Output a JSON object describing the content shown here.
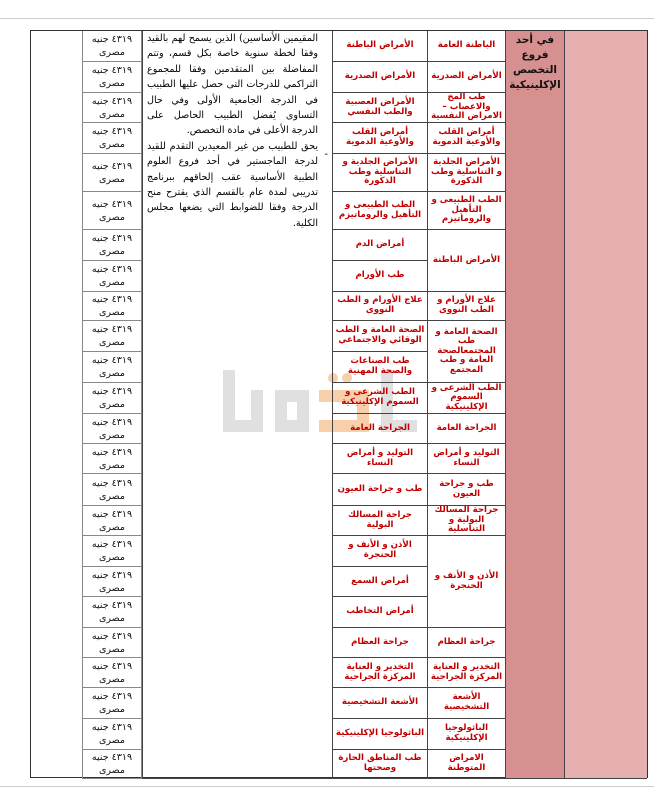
{
  "header_cell": "في أحد فروع التخصص الإكلينيكية",
  "description": {
    "paragraph_1": "المقيمين الأساسين) الذين يسمح لهم بالقيد وفقا لخطة سنوية خاصة بكل قسم، وتتم المفاضلة بين المتقدمين وفقا للمجموع التراكمي للدرجات التى حصل عليها الطبيب في الدرجة الجامعية الأولى وفي حال التساوى يُفضل الطبيب الحاصل على الدرجة الأعلى في مادة التخصص.",
    "bullet": "-",
    "paragraph_2": "يحق للطبيب من غير المعيدين التقدم للقيد لدرجة الماجستير في أحد فروع العلوم الطبية الأساسية عقب إلحاقهم ببرنامج تدريبي لمدة عام بالقسم الذي يقترح منح الدرجة وفقا للضوابط التي يضعها مجلس الكلية."
  },
  "fee": {
    "amount": "٤٣١٩ جنيه",
    "currency": "مصرى"
  },
  "departments": [
    {
      "label": "الباطنة العامة",
      "span": 1
    },
    {
      "label": "الأمراض الصدرية",
      "span": 1
    },
    {
      "label": "طب المخ والاعصاب –الامراض النفسية",
      "span": 1
    },
    {
      "label": "أمراض القلب والأوعية الدموية",
      "span": 1
    },
    {
      "label": "الأمراض الجلدية و التناسلية وطب الذكورة",
      "span": 1
    },
    {
      "label": "الطب الطبيعى و التأهيل والروماتيزم",
      "span": 1
    },
    {
      "label": "الأمراض الباطنة",
      "span": 2
    },
    {
      "label": "علاج الأورام و الطب النووى",
      "span": 1
    },
    {
      "label": "الصحة العامة و طب المجتمعالصحة العامة و طب المجتمع",
      "span": 2
    },
    {
      "label": "الطب الشرعى و السموم الإكلينيكية",
      "span": 1
    },
    {
      "label": "الجراحة العامة",
      "span": 1
    },
    {
      "label": "التوليد و أمراض النساء",
      "span": 1
    },
    {
      "label": "طب و جراحة العيون",
      "span": 1
    },
    {
      "label": "جراحة المسالك البولية و التناسلية",
      "span": 1
    },
    {
      "label": "الأذن و الأنف و الحنجرة",
      "span": 3
    },
    {
      "label": "جراحة العظام",
      "span": 1
    },
    {
      "label": "التخدير و العناية المركزة الجراحية",
      "span": 1
    },
    {
      "label": "الأشعة التشخيصية",
      "span": 1
    },
    {
      "label": "الباثولوجيا الإكلينيكية",
      "span": 1
    },
    {
      "label": "الامراض المتوطنة",
      "span": 1
    }
  ],
  "subspecialties": [
    "الأمراض الباطنة",
    "الأمراض الصدرية",
    "الأمراض العصبية والطب النفسي",
    "أمراض القلب والأوعية الدموية",
    "الأمراض الجلدية و التناسلية وطب الذكورة",
    "الطب الطبيعى و التأهيل والروماتيزم",
    "أمراض الدم",
    "طب الأورام",
    "علاج الأورام و الطب النووى",
    "الصحة العامة و الطب الوقائي والاجتماعي",
    "طب الصناعات والصحة المهنية",
    "الطب الشرعى و السموم الإكلينيكية",
    "الجراحة العامة",
    "التوليد و أمراض النساء",
    "طب و جراحة العيون",
    "جراحة المسالك البولية",
    "الأذن و الأنف و الحنجرة",
    "أمراض السمع",
    "أمراض التخاطب",
    "جراحة العظام",
    "التخدير و العناية المركزة الجراحية",
    "الأشعة التشخيصية",
    "الباثولوجيا الإكلينيكية",
    "طب المناطق الحارة وصحتها"
  ],
  "watermark": "اشتكول",
  "colors": {
    "text_red": "#c00000",
    "header_pink": "#d6908f",
    "last_col_pink": "#e6b0b1"
  }
}
